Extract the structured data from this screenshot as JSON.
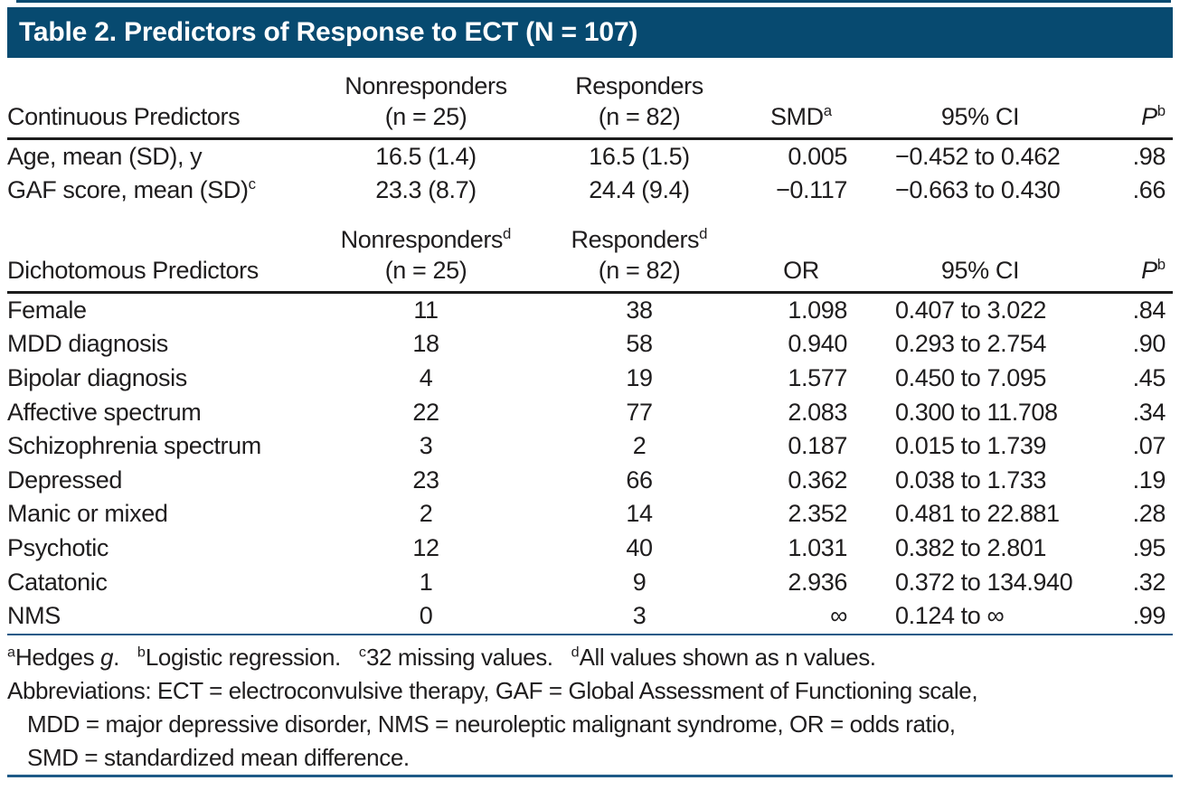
{
  "title": "Table 2. Predictors of Response to ECT (N = 107)",
  "colors": {
    "band": "#074a70",
    "rule_blue": "#1e5a87",
    "rule_black": "#1c1c1c",
    "text": "#1f1d1e"
  },
  "continuous": {
    "header": {
      "label": "Continuous Predictors",
      "nonresp": {
        "text": "Nonresponders",
        "sup": "",
        "sub": "(n = 25)"
      },
      "resp": {
        "text": "Responders",
        "sup": "",
        "sub": "(n = 82)"
      },
      "stat": {
        "text": "SMD",
        "sup": "a",
        "italic": false
      },
      "ci": {
        "text": "95% CI"
      },
      "p": {
        "text": "P",
        "sup": "b",
        "italic": true
      }
    },
    "rows": [
      {
        "label": "Age, mean (SD), y",
        "label_sup": "",
        "nonresp": "16.5 (1.4)",
        "resp": "16.5 (1.5)",
        "stat": "0.005",
        "ci": "−0.452 to 0.462",
        "p": ".98"
      },
      {
        "label": "GAF score, mean (SD)",
        "label_sup": "c",
        "nonresp": "23.3 (8.7)",
        "resp": "24.4 (9.4)",
        "stat": "−0.117",
        "ci": "−0.663 to 0.430",
        "p": ".66"
      }
    ]
  },
  "dichotomous": {
    "header": {
      "label": "Dichotomous Predictors",
      "nonresp": {
        "text": "Nonresponders",
        "sup": "d",
        "sub": "(n = 25)"
      },
      "resp": {
        "text": "Responders",
        "sup": "d",
        "sub": "(n = 82)"
      },
      "stat": {
        "text": "OR",
        "sup": "",
        "italic": false
      },
      "ci": {
        "text": "95% CI"
      },
      "p": {
        "text": "P",
        "sup": "b",
        "italic": true
      }
    },
    "rows": [
      {
        "label": "Female",
        "label_sup": "",
        "nonresp": "11",
        "resp": "38",
        "stat": "1.098",
        "ci": "0.407 to 3.022",
        "p": ".84"
      },
      {
        "label": "MDD diagnosis",
        "label_sup": "",
        "nonresp": "18",
        "resp": "58",
        "stat": "0.940",
        "ci": "0.293 to 2.754",
        "p": ".90"
      },
      {
        "label": "Bipolar diagnosis",
        "label_sup": "",
        "nonresp": "4",
        "resp": "19",
        "stat": "1.577",
        "ci": "0.450 to 7.095",
        "p": ".45"
      },
      {
        "label": "Affective spectrum",
        "label_sup": "",
        "nonresp": "22",
        "resp": "77",
        "stat": "2.083",
        "ci": "0.300 to 11.708",
        "p": ".34"
      },
      {
        "label": "Schizophrenia spectrum",
        "label_sup": "",
        "nonresp": "3",
        "resp": "2",
        "stat": "0.187",
        "ci": "0.015 to 1.739",
        "p": ".07"
      },
      {
        "label": "Depressed",
        "label_sup": "",
        "nonresp": "23",
        "resp": "66",
        "stat": "0.362",
        "ci": "0.038 to 1.733",
        "p": ".19"
      },
      {
        "label": "Manic or mixed",
        "label_sup": "",
        "nonresp": "2",
        "resp": "14",
        "stat": "2.352",
        "ci": "0.481 to 22.881",
        "p": ".28"
      },
      {
        "label": "Psychotic",
        "label_sup": "",
        "nonresp": "12",
        "resp": "40",
        "stat": "1.031",
        "ci": "0.382 to 2.801",
        "p": ".95"
      },
      {
        "label": "Catatonic",
        "label_sup": "",
        "nonresp": "1",
        "resp": "9",
        "stat": "2.936",
        "ci": "0.372 to 134.940",
        "p": ".32"
      },
      {
        "label": "NMS",
        "label_sup": "",
        "nonresp": "0",
        "resp": "3",
        "stat": "∞",
        "ci": "0.124 to ∞",
        "p": ".99"
      }
    ]
  },
  "footnotes": {
    "markers": [
      {
        "sup": "a",
        "pre": "Hedges ",
        "italic": "g",
        "post": "."
      },
      {
        "sup": "b",
        "pre": "Logistic regression.",
        "italic": "",
        "post": ""
      },
      {
        "sup": "c",
        "pre": "32 missing values.",
        "italic": "",
        "post": ""
      },
      {
        "sup": "d",
        "pre": "All values shown as n values.",
        "italic": "",
        "post": ""
      }
    ],
    "abbreviations_lines": [
      "Abbreviations: ECT = electroconvulsive therapy, GAF = Global Assessment of Functioning scale,",
      "MDD = major depressive disorder, NMS = neuroleptic malignant syndrome, OR = odds ratio,",
      "SMD = standardized mean difference."
    ]
  }
}
